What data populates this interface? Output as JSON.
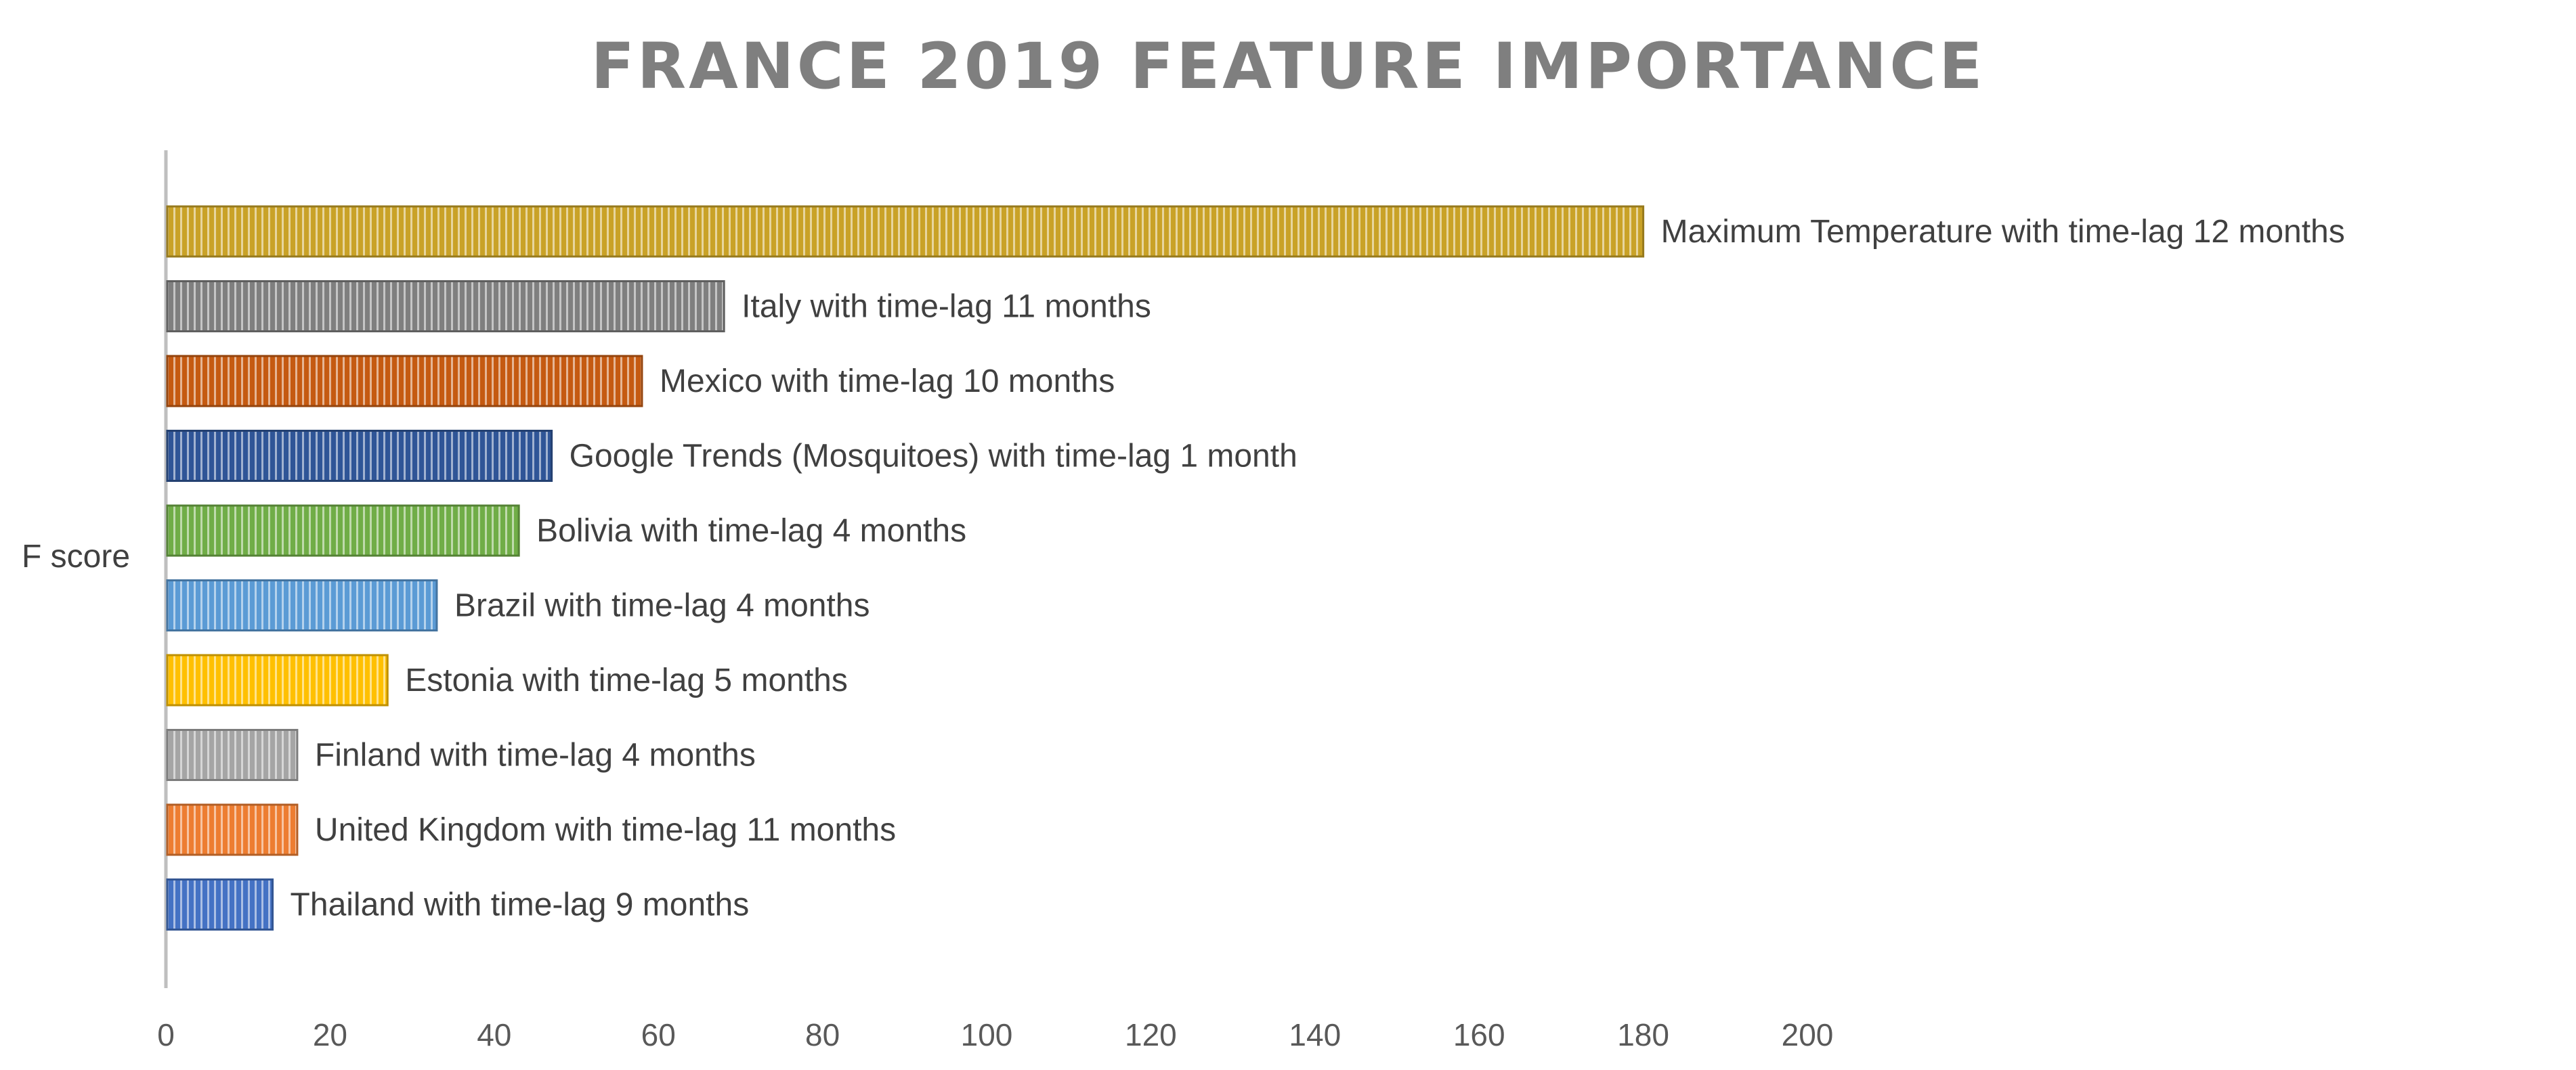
{
  "chart_data": {
    "type": "bar",
    "orientation": "horizontal",
    "title": "FRANCE 2019 FEATURE IMPORTANCE",
    "ylabel": "F score",
    "xlabel": "",
    "xlim": [
      0,
      200
    ],
    "xticks": [
      0,
      20,
      40,
      60,
      80,
      100,
      120,
      140,
      160,
      180,
      200
    ],
    "grid": false,
    "legend": "none",
    "bars": [
      {
        "label": "Maximum Temperature with time-lag 12 months",
        "value": 180,
        "color": "#C9A227"
      },
      {
        "label": "Italy with time-lag 11 months",
        "value": 68,
        "color": "#7F7F7F"
      },
      {
        "label": "Mexico with time-lag 10 months",
        "value": 58,
        "color": "#C55A11"
      },
      {
        "label": "Google Trends (Mosquitoes) with time-lag 1 month",
        "value": 47,
        "color": "#2F5597"
      },
      {
        "label": "Bolivia with time-lag 4 months",
        "value": 43,
        "color": "#70AD47"
      },
      {
        "label": "Brazil with time-lag 4 months",
        "value": 33,
        "color": "#5B9BD5"
      },
      {
        "label": "Estonia with time-lag 5 months",
        "value": 27,
        "color": "#FFC000"
      },
      {
        "label": "Finland with time-lag 4 months",
        "value": 16,
        "color": "#A5A5A5"
      },
      {
        "label": "United Kingdom with time-lag 11 months",
        "value": 16,
        "color": "#ED7D31"
      },
      {
        "label": "Thailand with time-lag 9 months",
        "value": 13,
        "color": "#4472C4"
      }
    ]
  }
}
